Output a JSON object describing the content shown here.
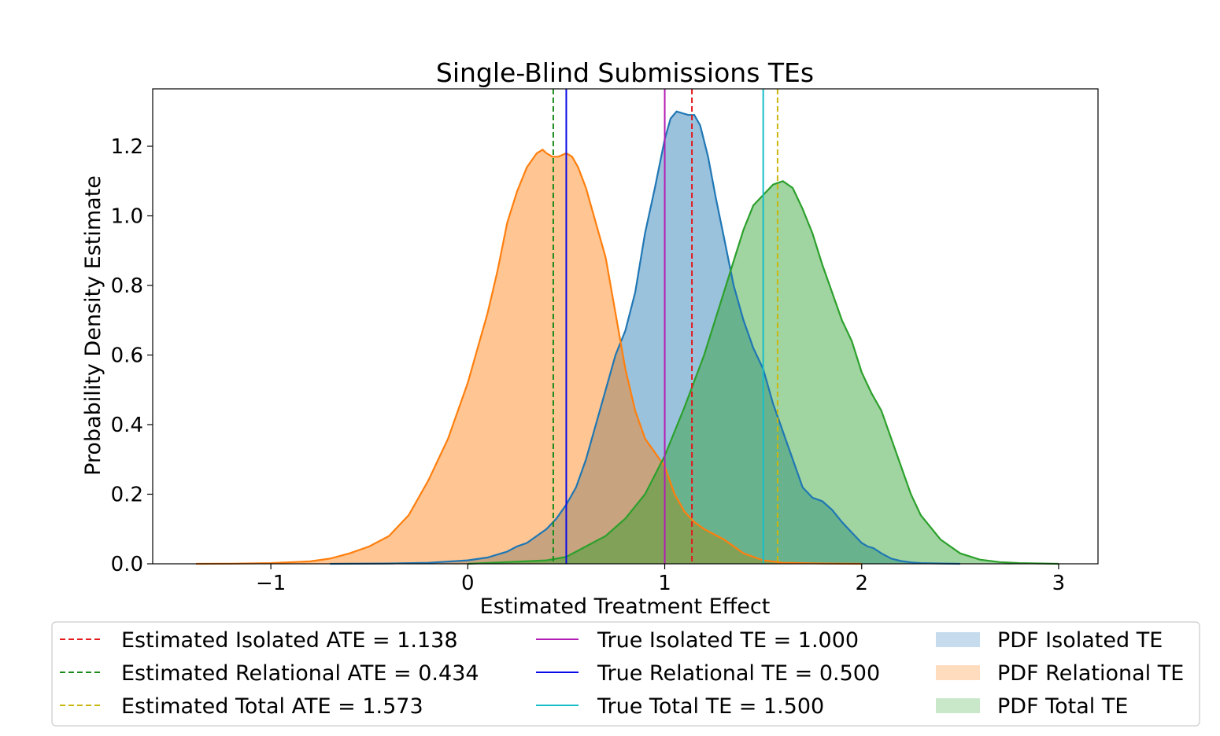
{
  "chart_data": {
    "type": "area",
    "title": "Single-Blind Submissions TEs",
    "xlabel": "Estimated Treatment Effect",
    "ylabel": "Probability Density Estimate",
    "xlim": [
      -1.6,
      3.2
    ],
    "ylim": [
      0,
      1.365
    ],
    "x_ticks": [
      -1,
      0,
      1,
      2,
      3
    ],
    "x_tick_labels": [
      "−1",
      "0",
      "1",
      "2",
      "3"
    ],
    "y_ticks": [
      0.0,
      0.2,
      0.4,
      0.6,
      0.8,
      1.0,
      1.2
    ],
    "y_tick_labels": [
      "0.0",
      "0.2",
      "0.4",
      "0.6",
      "0.8",
      "1.0",
      "1.2"
    ],
    "grid": false,
    "legend_position": "below",
    "series": [
      {
        "name": "PDF Isolated TE",
        "color": "#1f77b4",
        "fill": "#c6dbed",
        "x": [
          -0.7,
          -0.4,
          -0.2,
          0.0,
          0.1,
          0.2,
          0.25,
          0.3,
          0.35,
          0.4,
          0.45,
          0.5,
          0.55,
          0.6,
          0.65,
          0.7,
          0.75,
          0.8,
          0.85,
          0.9,
          0.95,
          1.0,
          1.03,
          1.06,
          1.09,
          1.12,
          1.15,
          1.18,
          1.22,
          1.26,
          1.3,
          1.35,
          1.4,
          1.45,
          1.5,
          1.55,
          1.6,
          1.65,
          1.7,
          1.75,
          1.8,
          1.85,
          1.9,
          1.95,
          2.0,
          2.03,
          2.06,
          2.1,
          2.15,
          2.2,
          2.25,
          2.3,
          2.4,
          2.5
        ],
        "y": [
          0.0,
          0.001,
          0.003,
          0.01,
          0.018,
          0.035,
          0.05,
          0.06,
          0.08,
          0.1,
          0.13,
          0.17,
          0.22,
          0.3,
          0.4,
          0.5,
          0.6,
          0.67,
          0.78,
          0.95,
          1.08,
          1.22,
          1.28,
          1.3,
          1.295,
          1.29,
          1.29,
          1.26,
          1.17,
          1.05,
          0.94,
          0.8,
          0.7,
          0.62,
          0.56,
          0.46,
          0.38,
          0.3,
          0.22,
          0.19,
          0.18,
          0.155,
          0.12,
          0.09,
          0.06,
          0.05,
          0.045,
          0.03,
          0.015,
          0.008,
          0.004,
          0.002,
          0.001,
          0.0
        ]
      },
      {
        "name": "PDF Relational TE",
        "color": "#ff7f0e",
        "fill": "#ffdcbd",
        "x": [
          -1.38,
          -1.2,
          -1.0,
          -0.8,
          -0.7,
          -0.6,
          -0.5,
          -0.4,
          -0.3,
          -0.2,
          -0.1,
          0.0,
          0.1,
          0.15,
          0.2,
          0.25,
          0.3,
          0.35,
          0.38,
          0.4,
          0.43,
          0.46,
          0.5,
          0.53,
          0.56,
          0.6,
          0.65,
          0.7,
          0.75,
          0.8,
          0.85,
          0.9,
          0.95,
          1.0,
          1.05,
          1.1,
          1.15,
          1.2,
          1.3,
          1.4,
          1.5,
          1.6,
          1.8,
          2.0
        ],
        "y": [
          0.0,
          0.0005,
          0.002,
          0.007,
          0.015,
          0.03,
          0.05,
          0.08,
          0.14,
          0.24,
          0.36,
          0.52,
          0.72,
          0.84,
          0.98,
          1.07,
          1.14,
          1.18,
          1.19,
          1.18,
          1.17,
          1.17,
          1.18,
          1.17,
          1.14,
          1.08,
          0.98,
          0.88,
          0.72,
          0.56,
          0.44,
          0.36,
          0.32,
          0.28,
          0.2,
          0.15,
          0.12,
          0.1,
          0.07,
          0.03,
          0.01,
          0.003,
          0.001,
          0.0
        ]
      },
      {
        "name": "PDF Total TE",
        "color": "#2ca02c",
        "fill": "#c9e8c9",
        "x": [
          0.0,
          0.2,
          0.4,
          0.5,
          0.6,
          0.7,
          0.8,
          0.9,
          1.0,
          1.1,
          1.2,
          1.3,
          1.35,
          1.4,
          1.45,
          1.5,
          1.55,
          1.6,
          1.65,
          1.7,
          1.75,
          1.8,
          1.85,
          1.9,
          1.95,
          2.0,
          2.05,
          2.1,
          2.15,
          2.2,
          2.25,
          2.3,
          2.4,
          2.5,
          2.6,
          2.7,
          2.8,
          3.0
        ],
        "y": [
          0.0,
          0.005,
          0.01,
          0.02,
          0.05,
          0.08,
          0.13,
          0.2,
          0.31,
          0.45,
          0.6,
          0.78,
          0.87,
          0.96,
          1.03,
          1.06,
          1.09,
          1.1,
          1.08,
          1.02,
          0.95,
          0.86,
          0.78,
          0.7,
          0.64,
          0.55,
          0.49,
          0.44,
          0.36,
          0.28,
          0.2,
          0.14,
          0.07,
          0.03,
          0.012,
          0.005,
          0.002,
          0.0
        ]
      }
    ],
    "vlines": [
      {
        "name": "Estimated Isolated ATE = 1.138",
        "x": 1.138,
        "color": "#e31a1c",
        "style": "dashed"
      },
      {
        "name": "Estimated Relational ATE = 0.434",
        "x": 0.434,
        "color": "#1a8a1a",
        "style": "dashed"
      },
      {
        "name": "Estimated Total ATE = 1.573",
        "x": 1.573,
        "color": "#c9b70e",
        "style": "dashed"
      },
      {
        "name": "True Isolated TE = 1.000",
        "x": 1.0,
        "color": "#b31db5",
        "style": "solid"
      },
      {
        "name": "True Relational TE = 0.500",
        "x": 0.5,
        "color": "#0a0ae6",
        "style": "solid"
      },
      {
        "name": "True Total TE = 1.500",
        "x": 1.5,
        "color": "#17bec8",
        "style": "solid"
      }
    ],
    "legend": [
      {
        "label": "Estimated Isolated ATE = 1.138",
        "color": "#e31a1c",
        "kind": "dashed"
      },
      {
        "label": "Estimated Relational ATE = 0.434",
        "color": "#1a8a1a",
        "kind": "dashed"
      },
      {
        "label": "Estimated Total ATE = 1.573",
        "color": "#c9b70e",
        "kind": "dashed"
      },
      {
        "label": "True Isolated TE = 1.000",
        "color": "#b31db5",
        "kind": "solid"
      },
      {
        "label": "True Relational TE = 0.500",
        "color": "#0a0ae6",
        "kind": "solid"
      },
      {
        "label": "True Total TE = 1.500",
        "color": "#17bec8",
        "kind": "solid"
      },
      {
        "label": "PDF Isolated TE",
        "color": "#c6dbed",
        "kind": "patch"
      },
      {
        "label": "PDF Relational TE",
        "color": "#ffdcbd",
        "kind": "patch"
      },
      {
        "label": "PDF Total TE",
        "color": "#c9e8c9",
        "kind": "patch"
      }
    ]
  }
}
